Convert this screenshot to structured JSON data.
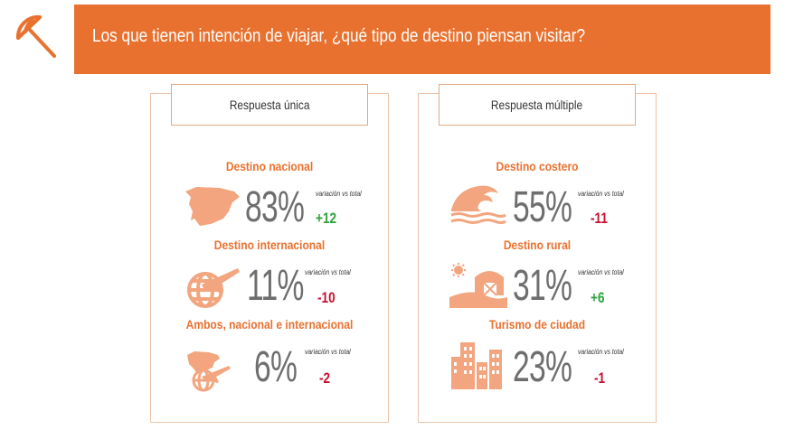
{
  "header": {
    "title": "Los que tienen intención de viajar, ¿qué tipo de destino piensan visitar?"
  },
  "colors": {
    "accent": "#E9712F",
    "icon": "#F2A57E",
    "positive": "#2EA33B",
    "negative": "#C8102E",
    "value": "#6E6E6E"
  },
  "chart_data": [
    {
      "type": "table",
      "title": "Respuesta única",
      "items": [
        {
          "label": "Destino nacional",
          "value": "83%",
          "percent": 83,
          "caption": "variación vs total",
          "change": "+12",
          "change_value": 12,
          "icon": "spain-map-icon"
        },
        {
          "label": "Destino internacional",
          "value": "11%",
          "percent": 11,
          "caption": "variación vs total",
          "change": "-10",
          "change_value": -10,
          "icon": "globe-plane-icon"
        },
        {
          "label": "Ambos, nacional e internacional",
          "value": "6%",
          "percent": 6,
          "caption": "variación vs total",
          "change": "-2",
          "change_value": -2,
          "icon": "map-globe-icon"
        }
      ]
    },
    {
      "type": "table",
      "title": "Respuesta múltiple",
      "items": [
        {
          "label": "Destino costero",
          "value": "55%",
          "percent": 55,
          "caption": "variación vs total",
          "change": "-11",
          "change_value": -11,
          "icon": "wave-icon"
        },
        {
          "label": "Destino rural",
          "value": "31%",
          "percent": 31,
          "caption": "variación vs total",
          "change": "+6",
          "change_value": 6,
          "icon": "barn-icon"
        },
        {
          "label": "Turismo de ciudad",
          "value": "23%",
          "percent": 23,
          "caption": "variación vs total",
          "change": "-1",
          "change_value": -1,
          "icon": "city-buildings-icon"
        }
      ]
    }
  ]
}
